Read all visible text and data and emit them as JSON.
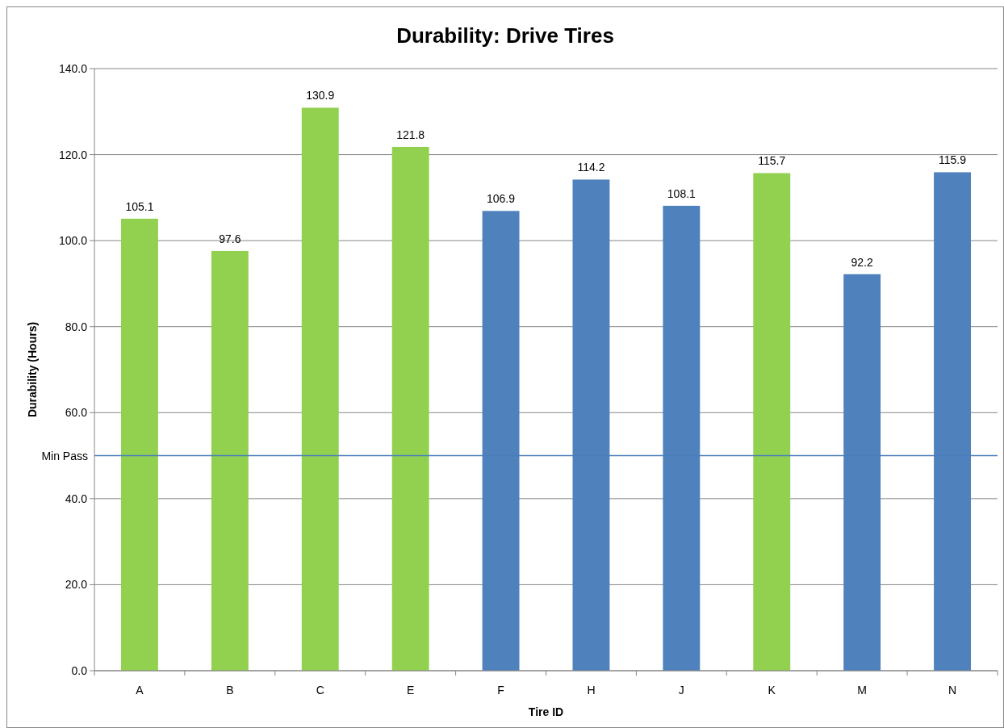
{
  "chart_data": {
    "type": "bar",
    "title": "Durability: Drive Tires",
    "xlabel": "Tire ID",
    "ylabel": "Durability (Hours)",
    "categories": [
      "A",
      "B",
      "C",
      "E",
      "F",
      "H",
      "J",
      "K",
      "M",
      "N"
    ],
    "values": [
      105.1,
      97.6,
      130.9,
      121.8,
      106.9,
      114.2,
      108.1,
      115.7,
      92.2,
      115.9
    ],
    "colors": [
      "#92d050",
      "#92d050",
      "#92d050",
      "#92d050",
      "#4f81bd",
      "#4f81bd",
      "#4f81bd",
      "#92d050",
      "#4f81bd",
      "#4f81bd"
    ],
    "ylim": [
      0,
      140
    ],
    "yticks": [
      {
        "value": 0,
        "label": "0.0"
      },
      {
        "value": 20,
        "label": "20.0"
      },
      {
        "value": 40,
        "label": "40.0"
      },
      {
        "value": 60,
        "label": "60.0"
      },
      {
        "value": 80,
        "label": "80.0"
      },
      {
        "value": 100,
        "label": "100.0"
      },
      {
        "value": 120,
        "label": "120.0"
      },
      {
        "value": 140,
        "label": "140.0"
      }
    ],
    "ref_lines": [
      {
        "axis": "y",
        "value": 50,
        "label": "Min Pass",
        "color": "#4a7ebb"
      }
    ],
    "data_labels": true,
    "grid": "y"
  }
}
